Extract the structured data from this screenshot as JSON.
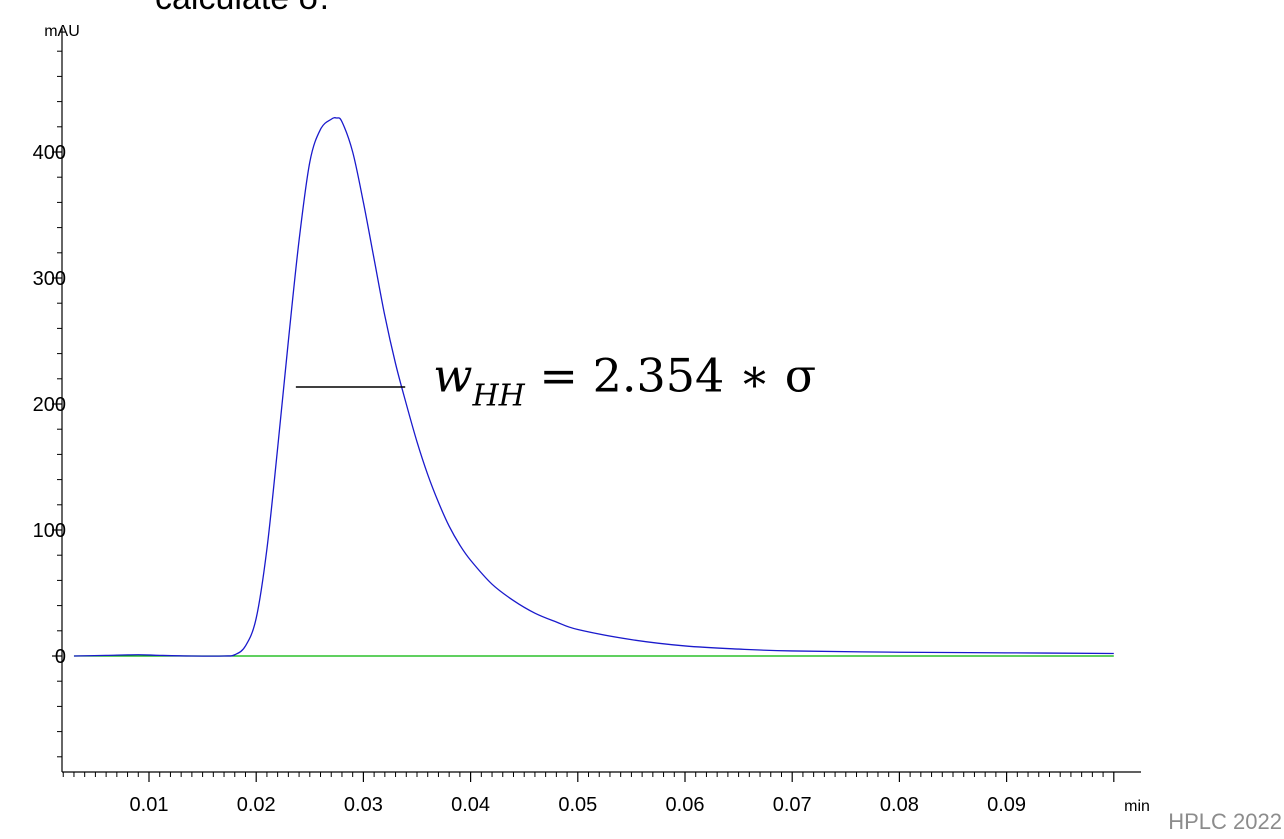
{
  "slide": {
    "text_fragment": "calculate σ.",
    "footer": "HPLC 2022"
  },
  "chart_data": {
    "type": "line",
    "xlabel": "min",
    "ylabel": "mAU",
    "xlim": [
      0.0,
      0.1
    ],
    "ylim": [
      -90,
      500
    ],
    "x_ticks": [
      0.01,
      0.02,
      0.03,
      0.04,
      0.05,
      0.06,
      0.07,
      0.08,
      0.09
    ],
    "x_tick_labels": [
      "0.01",
      "0.02",
      "0.03",
      "0.04",
      "0.05",
      "0.06",
      "0.07",
      "0.08",
      "0.09"
    ],
    "y_ticks": [
      0,
      100,
      200,
      300,
      400
    ],
    "y_tick_labels": [
      "0",
      "100",
      "200",
      "300",
      "400"
    ],
    "grid": false,
    "series": [
      {
        "color": "#1a1acc",
        "x": [
          0.003,
          0.006,
          0.009,
          0.011,
          0.014,
          0.017,
          0.018,
          0.019,
          0.02,
          0.021,
          0.022,
          0.023,
          0.024,
          0.025,
          0.026,
          0.027,
          0.0275,
          0.028,
          0.029,
          0.03,
          0.031,
          0.032,
          0.033,
          0.034,
          0.035,
          0.036,
          0.037,
          0.038,
          0.039,
          0.04,
          0.042,
          0.044,
          0.046,
          0.048,
          0.05,
          0.055,
          0.06,
          0.065,
          0.07,
          0.08,
          0.09,
          0.1
        ],
        "y": [
          0,
          0.5,
          1.0,
          0.5,
          0,
          0,
          1,
          8,
          30,
          85,
          165,
          250,
          330,
          392,
          418,
          426,
          427,
          424,
          400,
          360,
          315,
          270,
          232,
          200,
          170,
          144,
          122,
          103,
          88,
          76,
          57,
          44,
          34,
          27,
          21,
          13,
          8,
          5.5,
          4,
          3,
          2.5,
          2
        ]
      },
      {
        "color": "#00b400",
        "x": [
          0.003,
          0.1
        ],
        "y": [
          0,
          0
        ]
      }
    ],
    "annotations": [
      {
        "type": "half-height-width",
        "x_start": 0.0237,
        "x_end": 0.0339,
        "y": 213.5,
        "color": "#000000"
      },
      {
        "type": "formula",
        "w": "w",
        "sub": "HH",
        "rest": " = 2.354 ∗ σ",
        "x": 0.0365,
        "y": 210
      }
    ]
  }
}
